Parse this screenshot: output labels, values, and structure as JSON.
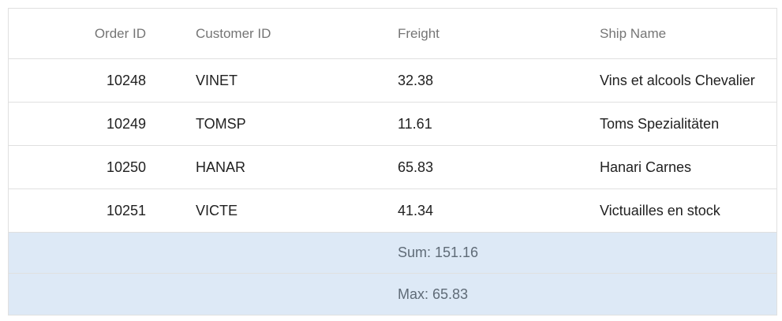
{
  "grid": {
    "columns": [
      {
        "label": "Order ID"
      },
      {
        "label": "Customer ID"
      },
      {
        "label": "Freight"
      },
      {
        "label": "Ship Name"
      }
    ],
    "rows": [
      {
        "order_id": "10248",
        "customer_id": "VINET",
        "freight": "32.38",
        "ship_name": "Vins et alcools Chevalier"
      },
      {
        "order_id": "10249",
        "customer_id": "TOMSP",
        "freight": "11.61",
        "ship_name": "Toms Spezialitäten"
      },
      {
        "order_id": "10250",
        "customer_id": "HANAR",
        "freight": "65.83",
        "ship_name": "Hanari Carnes"
      },
      {
        "order_id": "10251",
        "customer_id": "VICTE",
        "freight": "41.34",
        "ship_name": "Victuailles en stock"
      }
    ],
    "aggregates": [
      {
        "freight": "Sum: 151.16"
      },
      {
        "freight": "Max: 65.83"
      }
    ]
  },
  "colors": {
    "border": "#e0e0e0",
    "header_text": "#757575",
    "aggregate_background": "#dde9f6",
    "aggregate_text": "#5f6b77"
  }
}
